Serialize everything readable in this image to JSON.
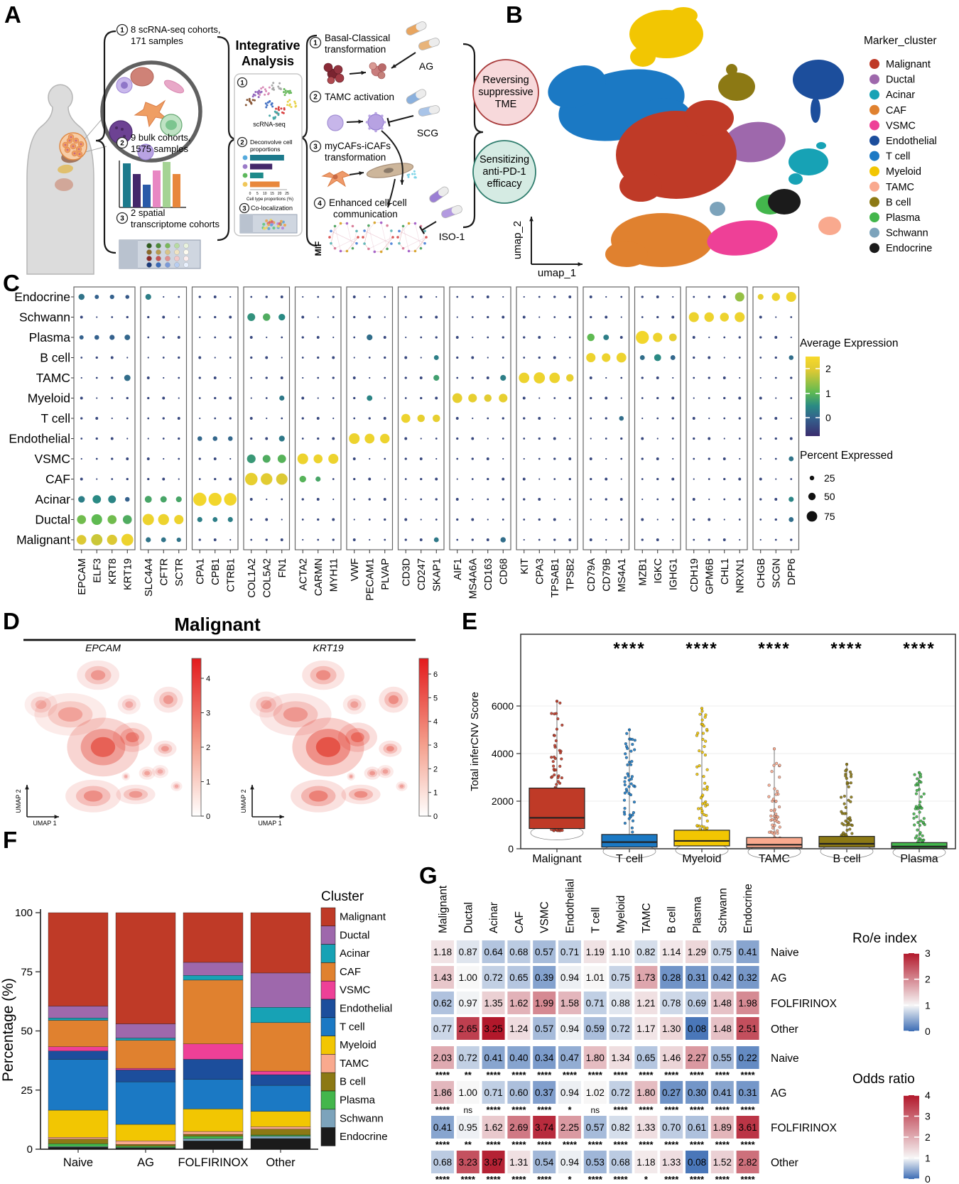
{
  "cluster_names": [
    "Malignant",
    "Ductal",
    "Acinar",
    "CAF",
    "VSMC",
    "Endothelial",
    "T cell",
    "Myeloid",
    "TAMC",
    "B cell",
    "Plasma",
    "Schwann",
    "Endocrine"
  ],
  "colors": {
    "Malignant": "#bf3a27",
    "Ductal": "#9e68ac",
    "Acinar": "#17a2b5",
    "CAF": "#e0812f",
    "VSMC": "#ee4097",
    "Endothelial": "#1c4e9c",
    "T cell": "#1b79c4",
    "Myeloid": "#f2c602",
    "TAMC": "#f9a98e",
    "B cell": "#8c7914",
    "Plasma": "#43b64c",
    "Schwann": "#7ca3bb",
    "Endocrine": "#1b1b1b"
  },
  "panelA": {
    "letter": "A",
    "cohorts": [
      {
        "num": "1",
        "lines": [
          "8 scRNA-seq cohorts,",
          "171 samples"
        ]
      },
      {
        "num": "2",
        "lines": [
          "9 bulk cohorts,",
          "1575 samples"
        ]
      },
      {
        "num": "3",
        "lines": [
          "2 spatial",
          "transcriptome cohorts"
        ]
      }
    ],
    "integrative": [
      "Integrative",
      "Analysis"
    ],
    "box_items": [
      {
        "num": "1",
        "label": "scRNA-seq"
      },
      {
        "num": "2",
        "label_lines": [
          "Deconvolve cell",
          "proportions"
        ]
      },
      {
        "num": "3",
        "label": "Co-localization"
      }
    ],
    "prop_axis_ticks": [
      "0",
      "5",
      "10",
      "15",
      "20",
      "25"
    ],
    "prop_axis_label": "Cell type proportions (%)",
    "deconv_values": [
      23,
      15,
      9,
      20
    ],
    "deconv_bar_colors": [
      "#1d7a8c",
      "#44286a",
      "#1d8a8a",
      "#e8873c"
    ],
    "deconv_bullet_colors": [
      "#55aadd",
      "#9b7bc8",
      "#5cb85c",
      "#f0c75a"
    ],
    "bulk_bar_colors": [
      "#1d7a8c",
      "#44286a",
      "#2a5aa8",
      "#e887c3",
      "#a5d394",
      "#e8873c"
    ],
    "bulk_bar_heights": [
      62,
      47,
      32,
      52,
      64,
      47
    ],
    "steps": [
      {
        "num": "1",
        "lines": [
          "Basal-Classical",
          "transformation"
        ]
      },
      {
        "num": "2",
        "lines": [
          "TAMC activation"
        ]
      },
      {
        "num": "3",
        "lines": [
          "myCAFs-iCAFs",
          "transformation"
        ]
      },
      {
        "num": "4",
        "lines": [
          "Enhanced cell-cell",
          "communication"
        ]
      }
    ],
    "mif": "MIF",
    "drugs": [
      "AG",
      "SCG",
      "ISO-1"
    ],
    "outcomes": [
      {
        "lines": [
          "Reversing",
          "suppressive",
          "TME"
        ],
        "fill": "#f7d9db",
        "stroke": "#a83a3a"
      },
      {
        "lines": [
          "Sensitizing",
          "anti-PD-1",
          "efficacy"
        ],
        "fill": "#d5ebe3",
        "stroke": "#2f7d6d"
      }
    ]
  },
  "panelB": {
    "letter": "B",
    "legend_title": "Marker_cluster",
    "xlab": "umap_1",
    "ylab": "umap_2"
  },
  "panelC": {
    "letter": "C",
    "rows": [
      "Endocrine",
      "Schwann",
      "Plasma",
      "B cell",
      "TAMC",
      "Myeloid",
      "T cell",
      "Endothelial",
      "VSMC",
      "CAF",
      "Acinar",
      "Ductal",
      "Malignant"
    ],
    "groups": [
      [
        "EPCAM",
        "ELF3",
        "KRT8",
        "KRT19"
      ],
      [
        "SLC4A4",
        "CFTR",
        "SCTR"
      ],
      [
        "CPA1",
        "CPB1",
        "CTRB1"
      ],
      [
        "COL1A2",
        "COL5A2",
        "FN1"
      ],
      [
        "ACTA2",
        "CARMN",
        "MYH11"
      ],
      [
        "VWF",
        "PECAM1",
        "PLVAP"
      ],
      [
        "CD3D",
        "CD247",
        "SKAP1"
      ],
      [
        "AIF1",
        "MS4A6A",
        "CD163",
        "CD68"
      ],
      [
        "KIT",
        "CPA3",
        "TPSAB1",
        "TPSB2"
      ],
      [
        "CD79A",
        "CD79B",
        "MS4A1"
      ],
      [
        "MZB1",
        "IGKC",
        "IGHG1"
      ],
      [
        "CDH19",
        "GPM6B",
        "CHL1",
        "NRXN1"
      ],
      [
        "CHGB",
        "SCGN",
        "DPP6"
      ]
    ],
    "legend": {
      "expr_title": "Average Expression",
      "expr_ticks": [
        "2",
        "1",
        "0"
      ],
      "pct_title": "Percent Expressed",
      "pct_ticks": [
        "25",
        "50",
        "75"
      ]
    },
    "highlights": [
      [
        12,
        "EPCAM",
        60,
        2.1
      ],
      [
        12,
        "ELF3",
        75,
        2.0
      ],
      [
        12,
        "KRT8",
        65,
        2.1
      ],
      [
        12,
        "KRT19",
        80,
        2.4
      ],
      [
        11,
        "EPCAM",
        55,
        1.5
      ],
      [
        11,
        "ELF3",
        70,
        1.4
      ],
      [
        11,
        "KRT8",
        55,
        1.5
      ],
      [
        11,
        "KRT19",
        55,
        1.2
      ],
      [
        10,
        "EPCAM",
        35,
        0.5
      ],
      [
        10,
        "ELF3",
        50,
        0.7
      ],
      [
        10,
        "KRT8",
        45,
        0.6
      ],
      [
        10,
        "KRT19",
        18,
        0
      ],
      [
        0,
        "EPCAM",
        30,
        0.3
      ],
      [
        0,
        "ELF3",
        14,
        0
      ],
      [
        0,
        "KRT8",
        16,
        0
      ],
      [
        0,
        "KRT19",
        12,
        -0.1
      ],
      [
        2,
        "EPCAM",
        14,
        0
      ],
      [
        2,
        "ELF3",
        18,
        0
      ],
      [
        2,
        "KRT8",
        22,
        0
      ],
      [
        2,
        "KRT19",
        26,
        0.1
      ],
      [
        4,
        "KRT19",
        32,
        0.2
      ],
      [
        11,
        "SLC4A4",
        75,
        2.4
      ],
      [
        11,
        "CFTR",
        72,
        2.4
      ],
      [
        11,
        "SCTR",
        58,
        2.4
      ],
      [
        10,
        "SLC4A4",
        38,
        1.1
      ],
      [
        10,
        "CFTR",
        33,
        1.1
      ],
      [
        10,
        "SCTR",
        28,
        1.1
      ],
      [
        12,
        "SLC4A4",
        22,
        0.3
      ],
      [
        12,
        "CFTR",
        20,
        0.3
      ],
      [
        12,
        "SCTR",
        16,
        0.3
      ],
      [
        0,
        "SLC4A4",
        28,
        0.5
      ],
      [
        10,
        "CPA1",
        92,
        2.5
      ],
      [
        10,
        "CPB1",
        90,
        2.5
      ],
      [
        10,
        "CTRB1",
        86,
        2.5
      ],
      [
        11,
        "CPA1",
        22,
        0.5
      ],
      [
        11,
        "CPB1",
        20,
        0.5
      ],
      [
        11,
        "CTRB1",
        22,
        0.5
      ],
      [
        7,
        "CPA1",
        18,
        0.1
      ],
      [
        7,
        "CPB1",
        18,
        0.1
      ],
      [
        7,
        "CTRB1",
        18,
        0.1
      ],
      [
        9,
        "COL1A2",
        85,
        2.3
      ],
      [
        9,
        "COL5A2",
        78,
        2.2
      ],
      [
        9,
        "FN1",
        76,
        2.1
      ],
      [
        8,
        "COL1A2",
        52,
        0.9
      ],
      [
        8,
        "COL5A2",
        45,
        1.2
      ],
      [
        8,
        "FN1",
        50,
        1.3
      ],
      [
        1,
        "COL1A2",
        45,
        0.8
      ],
      [
        1,
        "COL5A2",
        42,
        1.2
      ],
      [
        1,
        "FN1",
        35,
        0.7
      ],
      [
        7,
        "FN1",
        28,
        0.4
      ],
      [
        5,
        "FN1",
        22,
        0.4
      ],
      [
        8,
        "ACTA2",
        70,
        2.4
      ],
      [
        8,
        "CARMN",
        55,
        2.4
      ],
      [
        8,
        "MYH11",
        64,
        2.4
      ],
      [
        9,
        "ACTA2",
        35,
        1.3
      ],
      [
        9,
        "CARMN",
        22,
        1.1
      ],
      [
        7,
        "VWF",
        70,
        2.4
      ],
      [
        7,
        "PECAM1",
        62,
        2.4
      ],
      [
        7,
        "PLVAP",
        60,
        2.4
      ],
      [
        2,
        "PECAM1",
        28,
        0.2
      ],
      [
        5,
        "PECAM1",
        26,
        0.6
      ],
      [
        6,
        "CD3D",
        55,
        2.4
      ],
      [
        6,
        "CD247",
        42,
        2.3
      ],
      [
        6,
        "SKAP1",
        42,
        2.3
      ],
      [
        4,
        "SKAP1",
        28,
        1.0
      ],
      [
        3,
        "SKAP1",
        20,
        0.5
      ],
      [
        12,
        "SKAP1",
        20,
        0.4
      ],
      [
        5,
        "AIF1",
        62,
        2.3
      ],
      [
        5,
        "MS4A6A",
        52,
        2.3
      ],
      [
        5,
        "CD163",
        42,
        2.2
      ],
      [
        5,
        "CD68",
        52,
        2.3
      ],
      [
        4,
        "CD68",
        28,
        0.5
      ],
      [
        12,
        "CD68",
        24,
        0.2
      ],
      [
        4,
        "KIT",
        68,
        2.4
      ],
      [
        4,
        "CPA3",
        74,
        2.4
      ],
      [
        4,
        "TPSAB1",
        68,
        2.4
      ],
      [
        4,
        "TPSB2",
        42,
        2.3
      ],
      [
        3,
        "CD79A",
        58,
        2.4
      ],
      [
        3,
        "CD79B",
        52,
        2.4
      ],
      [
        3,
        "MS4A1",
        62,
        2.4
      ],
      [
        2,
        "CD79A",
        42,
        1.4
      ],
      [
        2,
        "CD79B",
        26,
        0.5
      ],
      [
        6,
        "MS4A1",
        18,
        0.2
      ],
      [
        2,
        "MZB1",
        90,
        2.5
      ],
      [
        2,
        "IGKC",
        58,
        2.4
      ],
      [
        2,
        "IGHG1",
        44,
        2.3
      ],
      [
        3,
        "MZB1",
        20,
        0.2
      ],
      [
        3,
        "IGKC",
        38,
        0.7
      ],
      [
        3,
        "IGHG1",
        20,
        0.1
      ],
      [
        1,
        "CDH19",
        64,
        2.4
      ],
      [
        1,
        "GPM6B",
        60,
        2.4
      ],
      [
        1,
        "CHL1",
        54,
        2.4
      ],
      [
        1,
        "NRXN1",
        64,
        2.4
      ],
      [
        0,
        "NRXN1",
        58,
        1.7
      ],
      [
        0,
        "CHGB",
        28,
        2.3
      ],
      [
        0,
        "SCGN",
        48,
        2.4
      ],
      [
        0,
        "DPP6",
        64,
        2.4
      ],
      [
        10,
        "DPP6",
        22,
        0.6
      ],
      [
        11,
        "DPP6",
        20,
        0.2
      ],
      [
        3,
        "DPP6",
        18,
        0.2
      ],
      [
        8,
        "DPP6",
        20,
        0.3
      ]
    ]
  },
  "panelD": {
    "letter": "D",
    "title": "Malignant",
    "xlab": "UMAP 1",
    "ylab": "UMAP 2",
    "plots": [
      {
        "gene": "EPCAM",
        "cmax": 4,
        "ticks": [
          0,
          1,
          2,
          3,
          4
        ]
      },
      {
        "gene": "KRT19",
        "cmax": 6,
        "ticks": [
          0,
          1,
          2,
          3,
          4,
          5,
          6
        ]
      }
    ]
  },
  "panelE": {
    "letter": "E",
    "ylabel": "Total inferCNV Score",
    "yticks": [
      0,
      2000,
      4000,
      6000
    ],
    "categories": [
      {
        "name": "Malignant",
        "q1": 850,
        "med": 1300,
        "q3": 2550,
        "pmax": 6200,
        "sig": ""
      },
      {
        "name": "T cell",
        "q1": 70,
        "med": 280,
        "q3": 600,
        "pmax": 5000,
        "sig": "****"
      },
      {
        "name": "Myeloid",
        "q1": 120,
        "med": 330,
        "q3": 780,
        "pmax": 5900,
        "sig": "****"
      },
      {
        "name": "TAMC",
        "q1": 50,
        "med": 170,
        "q3": 470,
        "pmax": 4200,
        "sig": "****"
      },
      {
        "name": "B cell",
        "q1": 70,
        "med": 210,
        "q3": 520,
        "pmax": 3550,
        "sig": "****"
      },
      {
        "name": "Plasma",
        "q1": 25,
        "med": 95,
        "q3": 260,
        "pmax": 3200,
        "sig": "****"
      }
    ]
  },
  "panelF": {
    "letter": "F",
    "ylabel": "Percentage (%)",
    "yticks": [
      0,
      25,
      50,
      75,
      100
    ],
    "categories": [
      "Naive",
      "AG",
      "FOLFIRINOX",
      "Other"
    ],
    "legend_title": "Cluster",
    "series": [
      {
        "name": "Malignant",
        "values": [
          39.5,
          47.0,
          21.0,
          25.5
        ]
      },
      {
        "name": "Ductal",
        "values": [
          5.0,
          6.0,
          5.5,
          14.5
        ]
      },
      {
        "name": "Acinar",
        "values": [
          1.0,
          1.0,
          2.0,
          6.5
        ]
      },
      {
        "name": "CAF",
        "values": [
          11.2,
          11.8,
          27.0,
          20.5
        ]
      },
      {
        "name": "VSMC",
        "values": [
          1.8,
          0.7,
          6.5,
          1.5
        ]
      },
      {
        "name": "Endothelial",
        "values": [
          3.5,
          5.0,
          8.5,
          4.5
        ]
      },
      {
        "name": "T cell",
        "values": [
          21.5,
          18.0,
          12.5,
          11.0
        ]
      },
      {
        "name": "Myeloid",
        "values": [
          11.5,
          7.0,
          9.5,
          6.5
        ]
      },
      {
        "name": "TAMC",
        "values": [
          0.7,
          1.5,
          1.2,
          1.0
        ]
      },
      {
        "name": "B cell",
        "values": [
          2.0,
          0.7,
          0.8,
          2.5
        ]
      },
      {
        "name": "Plasma",
        "values": [
          1.2,
          0.6,
          1.0,
          0.5
        ]
      },
      {
        "name": "Schwann",
        "values": [
          0.3,
          0.2,
          1.0,
          1.0
        ]
      },
      {
        "name": "Endocrine",
        "values": [
          0.8,
          0.5,
          3.5,
          4.5
        ]
      }
    ]
  },
  "panelG": {
    "letter": "G",
    "columns": [
      "Malignant",
      "Ductal",
      "Acinar",
      "CAF",
      "VSMC",
      "Endothelial",
      "T cell",
      "Myeloid",
      "TAMC",
      "B cell",
      "Plasma",
      "Schwann",
      "Endocrine"
    ],
    "roe": {
      "title": "Ro/e index",
      "scale_max": 3,
      "ticks": [
        3,
        2,
        1,
        0
      ],
      "rows": [
        {
          "name": "Naive",
          "values": [
            1.18,
            0.87,
            0.64,
            0.68,
            0.57,
            0.71,
            1.19,
            1.1,
            0.82,
            1.14,
            1.29,
            0.75,
            0.41
          ]
        },
        {
          "name": "AG",
          "values": [
            1.43,
            1.0,
            0.72,
            0.65,
            0.39,
            0.94,
            1.01,
            0.75,
            1.73,
            0.28,
            0.31,
            0.42,
            0.32
          ]
        },
        {
          "name": "FOLFIRINOX",
          "values": [
            0.62,
            0.97,
            1.35,
            1.62,
            1.99,
            1.58,
            0.71,
            0.88,
            1.21,
            0.78,
            0.69,
            1.48,
            1.98
          ]
        },
        {
          "name": "Other",
          "values": [
            0.77,
            2.65,
            3.25,
            1.24,
            0.57,
            0.94,
            0.59,
            0.72,
            1.17,
            1.3,
            0.08,
            1.48,
            2.51
          ]
        }
      ]
    },
    "odds": {
      "title": "Odds ratio",
      "scale_max": 4,
      "ticks": [
        4,
        3,
        2,
        1,
        0
      ],
      "rows": [
        {
          "name": "Naive",
          "values": [
            2.03,
            0.72,
            0.41,
            0.4,
            0.34,
            0.47,
            1.8,
            1.34,
            0.65,
            1.46,
            2.27,
            0.55,
            0.22
          ],
          "sig": [
            "****",
            "**",
            "****",
            "****",
            "****",
            "****",
            "****",
            "****",
            "****",
            "****",
            "****",
            "****",
            "****"
          ]
        },
        {
          "name": "AG",
          "values": [
            1.86,
            1.0,
            0.71,
            0.6,
            0.37,
            0.94,
            1.02,
            0.72,
            1.8,
            0.27,
            0.3,
            0.41,
            0.31
          ],
          "sig": [
            "****",
            "ns",
            "****",
            "****",
            "****",
            "*",
            "ns",
            "****",
            "****",
            "****",
            "****",
            "****",
            "****"
          ]
        },
        {
          "name": "FOLFIRINOX",
          "values": [
            0.41,
            0.95,
            1.62,
            2.69,
            3.74,
            2.25,
            0.57,
            0.82,
            1.33,
            0.7,
            0.61,
            1.89,
            3.61
          ],
          "sig": [
            "****",
            "**",
            "****",
            "****",
            "****",
            "****",
            "****",
            "****",
            "****",
            "****",
            "****",
            "****",
            "****"
          ]
        },
        {
          "name": "Other",
          "values": [
            0.68,
            3.23,
            3.87,
            1.31,
            0.54,
            0.94,
            0.53,
            0.68,
            1.18,
            1.33,
            0.08,
            1.52,
            2.82
          ],
          "sig": [
            "****",
            "****",
            "****",
            "****",
            "****",
            "*",
            "****",
            "****",
            "*",
            "****",
            "****",
            "****",
            "****"
          ]
        }
      ]
    }
  }
}
